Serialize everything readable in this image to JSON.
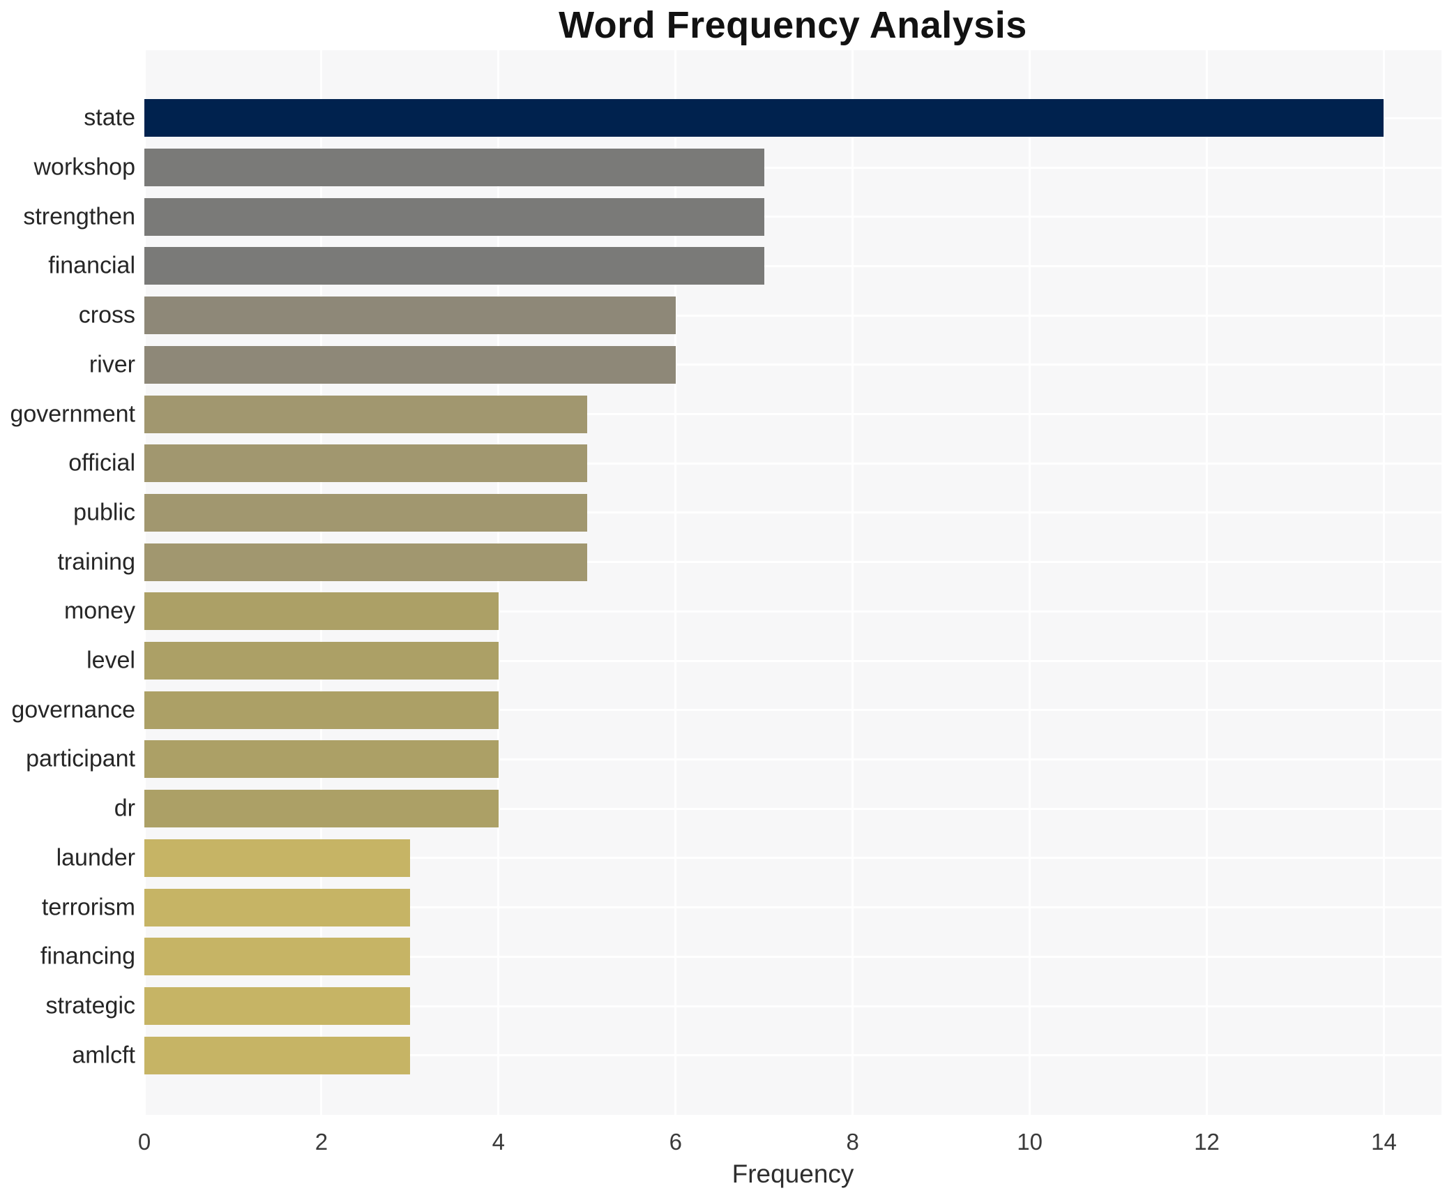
{
  "title": "Word Frequency Analysis",
  "chart_data": {
    "type": "bar",
    "orientation": "horizontal",
    "title": "Word Frequency Analysis",
    "xlabel": "Frequency",
    "ylabel": "",
    "xlim": [
      0,
      14.65
    ],
    "x_ticks": [
      0,
      2,
      4,
      6,
      8,
      10,
      12,
      14
    ],
    "grid": true,
    "legend": "none",
    "plot_background": "#f7f7f8",
    "gridline_color": "#ffffff",
    "categories": [
      "state",
      "workshop",
      "strengthen",
      "financial",
      "cross",
      "river",
      "government",
      "official",
      "public",
      "training",
      "money",
      "level",
      "governance",
      "participant",
      "dr",
      "launder",
      "terrorism",
      "financing",
      "strategic",
      "amlcft"
    ],
    "values": [
      14,
      7,
      7,
      7,
      6,
      6,
      5,
      5,
      5,
      5,
      4,
      4,
      4,
      4,
      4,
      3,
      3,
      3,
      3,
      3
    ],
    "bar_colors": [
      "#00224e",
      "#7a7a78",
      "#7a7a78",
      "#7a7a78",
      "#8e8878",
      "#8e8878",
      "#a1976f",
      "#a1976f",
      "#a1976f",
      "#a1976f",
      "#aca066",
      "#aca066",
      "#aca066",
      "#aca066",
      "#aca066",
      "#c6b465",
      "#c6b465",
      "#c6b465",
      "#c6b465",
      "#c6b465"
    ]
  }
}
